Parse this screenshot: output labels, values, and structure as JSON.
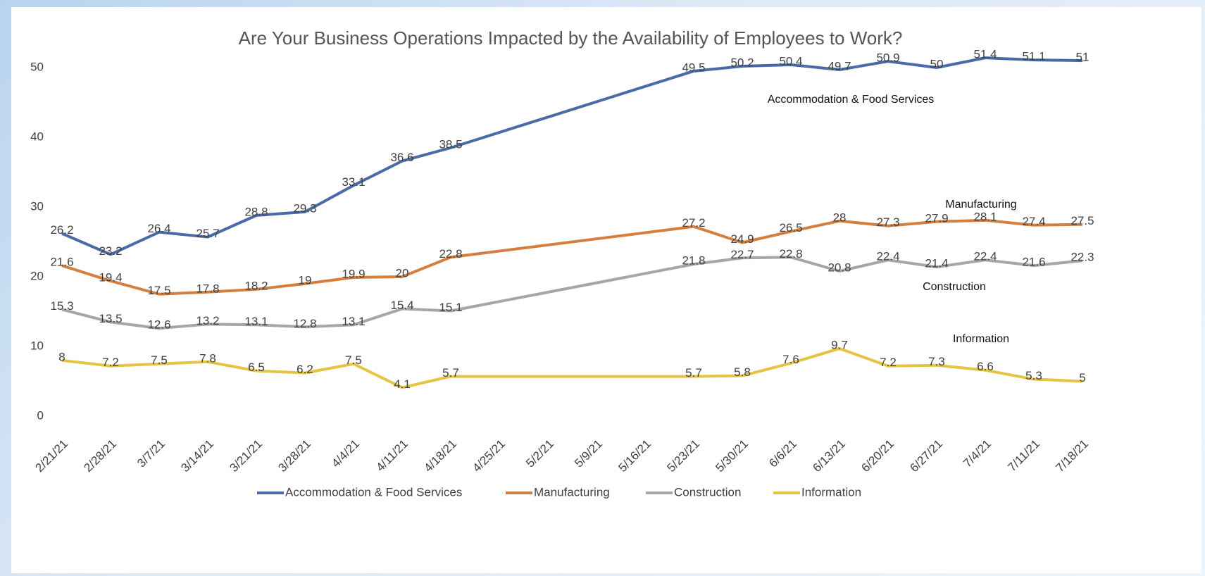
{
  "chart_data": {
    "type": "line",
    "title": "Are Your Business Operations Impacted by the Availability of Employees to Work?",
    "x": [
      "2/21/21",
      "2/28/21",
      "3/7/21",
      "3/14/21",
      "3/21/21",
      "3/28/21",
      "4/4/21",
      "4/11/21",
      "4/18/21",
      "5/23/21",
      "5/30/21",
      "6/6/21",
      "6/13/21",
      "6/20/21",
      "6/27/21",
      "7/4/21",
      "7/11/21",
      "7/18/21"
    ],
    "xticks": [
      "2/21/21",
      "2/28/21",
      "3/7/21",
      "3/14/21",
      "3/21/21",
      "3/28/21",
      "4/4/21",
      "4/11/21",
      "4/18/21",
      "4/25/21",
      "5/2/21",
      "5/9/21",
      "5/16/21",
      "5/23/21",
      "5/30/21",
      "6/6/21",
      "6/13/21",
      "6/20/21",
      "6/27/21",
      "7/4/21",
      "7/11/21",
      "7/18/21"
    ],
    "series": [
      {
        "name": "Accommodation & Food Services",
        "color": "#4a6aa8",
        "values": [
          26.2,
          23.2,
          26.4,
          25.7,
          28.8,
          29.3,
          33.1,
          36.6,
          38.5,
          49.5,
          50.2,
          50.4,
          49.7,
          50.9,
          50,
          51.4,
          51.1,
          51
        ]
      },
      {
        "name": "Manufacturing",
        "color": "#d47f3f",
        "values": [
          21.6,
          19.4,
          17.5,
          17.8,
          18.2,
          19,
          19.9,
          20,
          22.8,
          27.2,
          24.9,
          26.5,
          28,
          27.3,
          27.9,
          28.1,
          27.4,
          27.5
        ]
      },
      {
        "name": "Construction",
        "color": "#a6a6a6",
        "values": [
          15.3,
          13.5,
          12.6,
          13.2,
          13.1,
          12.8,
          13.1,
          15.4,
          15.1,
          21.8,
          22.7,
          22.8,
          20.8,
          22.4,
          21.4,
          22.4,
          21.6,
          22.3
        ]
      },
      {
        "name": "Information",
        "color": "#e6c443",
        "values": [
          8,
          7.2,
          7.5,
          7.8,
          6.5,
          6.2,
          7.5,
          4.1,
          5.7,
          5.7,
          5.8,
          7.6,
          9.7,
          7.2,
          7.3,
          6.6,
          5.3,
          5
        ]
      }
    ],
    "ylim": [
      0,
      50
    ],
    "yticks": [
      0,
      10,
      20,
      30,
      40,
      50
    ],
    "grid": false,
    "legend": "bottom"
  }
}
